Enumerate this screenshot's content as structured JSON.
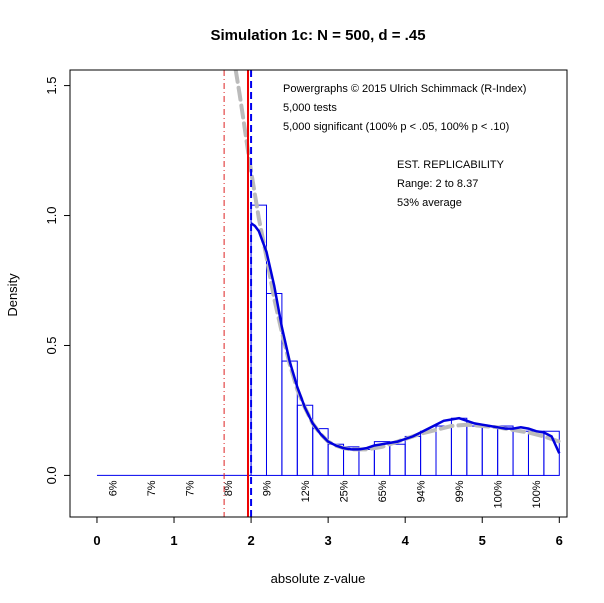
{
  "chart_data": {
    "type": "bar",
    "title": "Simulation 1c: N = 500, d = .45",
    "xlabel": "absolute z-value",
    "ylabel": "Density",
    "xlim": [
      -0.35,
      6.1
    ],
    "ylim": [
      -0.16,
      1.56
    ],
    "xticks": [
      0,
      1,
      2,
      3,
      4,
      5,
      6
    ],
    "xtick_labels": [
      "0",
      "1",
      "2",
      "3",
      "4",
      "5",
      "6"
    ],
    "yticks": [
      0.0,
      0.5,
      1.0,
      1.5
    ],
    "ytick_labels": [
      "0.0",
      "0.5",
      "1.0",
      "1.5"
    ],
    "grid": false,
    "histogram": {
      "bin_width": 0.2,
      "bins": [
        {
          "x0": 2.0,
          "value": 1.04
        },
        {
          "x0": 2.2,
          "value": 0.7
        },
        {
          "x0": 2.4,
          "value": 0.44
        },
        {
          "x0": 2.6,
          "value": 0.27
        },
        {
          "x0": 2.8,
          "value": 0.18
        },
        {
          "x0": 3.0,
          "value": 0.12
        },
        {
          "x0": 3.2,
          "value": 0.11
        },
        {
          "x0": 3.4,
          "value": 0.1
        },
        {
          "x0": 3.6,
          "value": 0.13
        },
        {
          "x0": 3.8,
          "value": 0.12
        },
        {
          "x0": 4.0,
          "value": 0.15
        },
        {
          "x0": 4.2,
          "value": 0.17
        },
        {
          "x0": 4.4,
          "value": 0.19
        },
        {
          "x0": 4.6,
          "value": 0.22
        },
        {
          "x0": 4.8,
          "value": 0.19
        },
        {
          "x0": 5.0,
          "value": 0.19
        },
        {
          "x0": 5.2,
          "value": 0.19
        },
        {
          "x0": 5.4,
          "value": 0.17
        },
        {
          "x0": 5.6,
          "value": 0.17
        },
        {
          "x0": 5.8,
          "value": 0.17
        }
      ]
    },
    "density_curve": {
      "x": [
        2.0,
        2.05,
        2.1,
        2.2,
        2.3,
        2.4,
        2.5,
        2.6,
        2.7,
        2.8,
        2.9,
        3.0,
        3.1,
        3.2,
        3.3,
        3.4,
        3.5,
        3.6,
        3.7,
        3.8,
        3.9,
        4.0,
        4.1,
        4.2,
        4.3,
        4.4,
        4.5,
        4.6,
        4.7,
        4.8,
        4.9,
        5.0,
        5.1,
        5.2,
        5.3,
        5.4,
        5.5,
        5.6,
        5.7,
        5.8,
        5.9,
        6.0
      ],
      "y": [
        0.97,
        0.96,
        0.94,
        0.86,
        0.73,
        0.57,
        0.44,
        0.34,
        0.26,
        0.2,
        0.16,
        0.13,
        0.115,
        0.105,
        0.1,
        0.1,
        0.105,
        0.115,
        0.12,
        0.125,
        0.13,
        0.14,
        0.15,
        0.165,
        0.18,
        0.195,
        0.21,
        0.215,
        0.22,
        0.21,
        0.2,
        0.195,
        0.19,
        0.185,
        0.18,
        0.18,
        0.185,
        0.18,
        0.17,
        0.165,
        0.15,
        0.085
      ]
    },
    "fitted_curve": {
      "x": [
        1.8,
        1.85,
        1.9,
        1.95,
        2.0,
        2.1,
        2.2,
        2.3,
        2.4,
        2.5,
        2.6,
        2.7,
        2.8,
        2.9,
        3.0,
        3.1,
        3.2,
        3.3,
        3.4,
        3.5,
        3.6,
        3.7,
        3.8,
        3.9,
        4.0,
        4.2,
        4.4,
        4.6,
        4.8,
        5.0,
        5.2,
        5.4,
        5.6,
        5.8,
        6.0
      ],
      "y": [
        1.56,
        1.47,
        1.37,
        1.27,
        1.17,
        0.99,
        0.84,
        0.68,
        0.55,
        0.43,
        0.33,
        0.26,
        0.2,
        0.16,
        0.13,
        0.115,
        0.105,
        0.1,
        0.1,
        0.1,
        0.105,
        0.11,
        0.12,
        0.13,
        0.14,
        0.16,
        0.175,
        0.19,
        0.195,
        0.19,
        0.185,
        0.175,
        0.165,
        0.15,
        0.13
      ]
    },
    "vlines": [
      {
        "x": 1.65,
        "style": "dash-dot",
        "color": "#dd2222"
      },
      {
        "x": 1.96,
        "style": "solid",
        "color": "#ee0000"
      },
      {
        "x": 2.0,
        "style": "dashed",
        "color": "#0000ee"
      }
    ],
    "baseline": {
      "x0": 0.0,
      "x1": 2.0,
      "y": 0.0
    },
    "percent_labels": [
      {
        "x": 0.2,
        "label": "6%"
      },
      {
        "x": 0.7,
        "label": "7%"
      },
      {
        "x": 1.2,
        "label": "7%"
      },
      {
        "x": 1.7,
        "label": "8%"
      },
      {
        "x": 2.2,
        "label": "9%"
      },
      {
        "x": 2.7,
        "label": "12%"
      },
      {
        "x": 3.2,
        "label": "25%"
      },
      {
        "x": 3.7,
        "label": "65%"
      },
      {
        "x": 4.2,
        "label": "94%"
      },
      {
        "x": 4.7,
        "label": "99%"
      },
      {
        "x": 5.2,
        "label": "100%"
      },
      {
        "x": 5.7,
        "label": "100%"
      }
    ],
    "annotations": {
      "header_lines": [
        "Powergraphs © 2015 Ulrich Schimmack (R-Index)",
        "5,000 tests",
        "5,000 significant (100% p < .05, 100% p < .10)"
      ],
      "replicability_lines": [
        "EST. REPLICABILITY",
        "Range: 2 to 8.37",
        "53% average"
      ]
    },
    "colors": {
      "hist": "#0000ee",
      "density": "#0000dd",
      "fitted": "#bbbbbb",
      "axis": "#000000"
    }
  }
}
